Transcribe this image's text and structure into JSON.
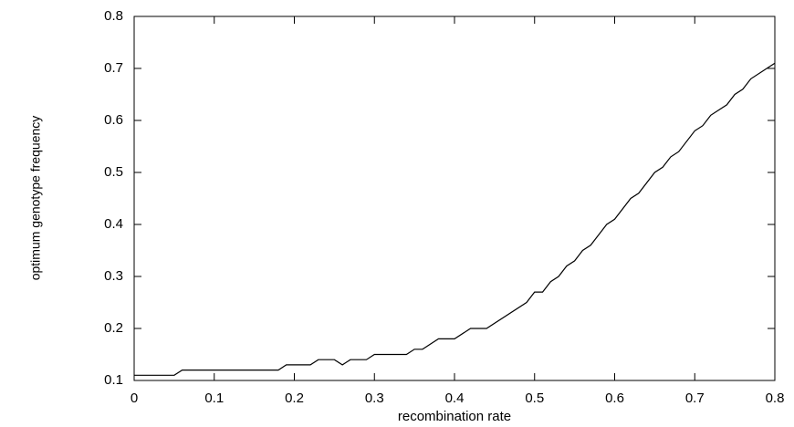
{
  "chart_data": {
    "type": "line",
    "x_label": "recombination rate",
    "y_label": "optimum genotype frequency",
    "xlim": [
      0,
      0.8
    ],
    "ylim": [
      0.1,
      0.8
    ],
    "xticks": [
      0,
      0.1,
      0.2,
      0.3,
      0.4,
      0.5,
      0.6,
      0.7,
      0.8
    ],
    "yticks": [
      0.1,
      0.2,
      0.3,
      0.4,
      0.5,
      0.6,
      0.7,
      0.8
    ],
    "series": [
      {
        "color": "#000000",
        "x": [
          0,
          0.05,
          0.06,
          0.18,
          0.19,
          0.22,
          0.23,
          0.25,
          0.26,
          0.27,
          0.29,
          0.3,
          0.34,
          0.35,
          0.36,
          0.38,
          0.4,
          0.42,
          0.44,
          0.49,
          0.5,
          0.51,
          0.52,
          0.53,
          0.54,
          0.55,
          0.56,
          0.57,
          0.59,
          0.6,
          0.62,
          0.63,
          0.65,
          0.66,
          0.67,
          0.68,
          0.7,
          0.71,
          0.72,
          0.74,
          0.75,
          0.76,
          0.77,
          0.8
        ],
        "values": [
          0.11,
          0.11,
          0.12,
          0.12,
          0.13,
          0.13,
          0.14,
          0.14,
          0.13,
          0.14,
          0.14,
          0.15,
          0.15,
          0.16,
          0.16,
          0.18,
          0.18,
          0.2,
          0.2,
          0.25,
          0.27,
          0.27,
          0.29,
          0.3,
          0.32,
          0.33,
          0.35,
          0.36,
          0.4,
          0.41,
          0.45,
          0.46,
          0.5,
          0.51,
          0.53,
          0.54,
          0.58,
          0.59,
          0.61,
          0.63,
          0.65,
          0.66,
          0.68,
          0.71
        ]
      }
    ]
  }
}
